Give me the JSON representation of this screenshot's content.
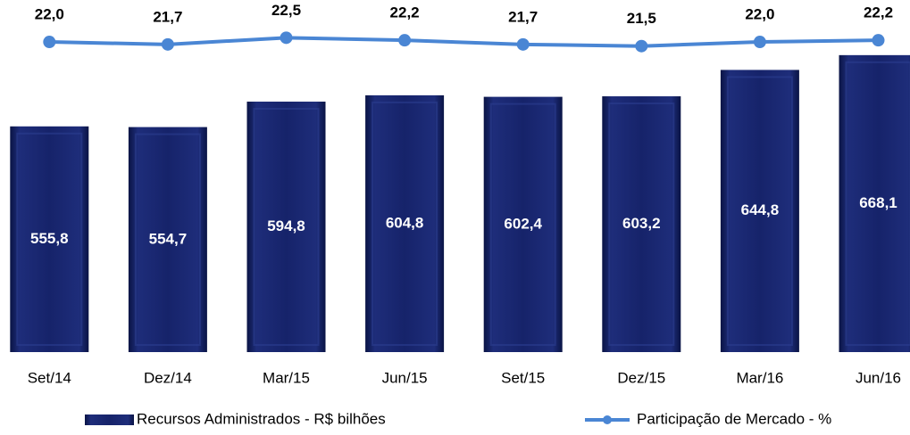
{
  "chart_data": {
    "type": "bar_line",
    "categories": [
      "Set/14",
      "Dez/14",
      "Mar/15",
      "Jun/15",
      "Set/15",
      "Dez/15",
      "Mar/16",
      "Jun/16"
    ],
    "series": [
      {
        "name": "Recursos Administrados - R$ bilhões",
        "type": "bar",
        "color": "#16236a",
        "values": [
          555.8,
          554.7,
          594.8,
          604.8,
          602.4,
          603.2,
          644.8,
          668.1
        ],
        "value_labels": [
          "555,8",
          "554,7",
          "594,8",
          "604,8",
          "602,4",
          "603,2",
          "644,8",
          "668,1"
        ]
      },
      {
        "name": "Participação de Mercado - %",
        "type": "line",
        "axis": "y2",
        "color": "#4a86d4",
        "values": [
          22.0,
          21.7,
          22.5,
          22.2,
          21.7,
          21.5,
          22.0,
          22.2
        ],
        "value_labels": [
          "22,0",
          "21,7",
          "22,5",
          "22,2",
          "21,7",
          "21,5",
          "22,0",
          "22,2"
        ]
      }
    ],
    "ylim": [
      200,
      755
    ],
    "y2lim": [
      -15,
      27
    ],
    "legend": "bottom"
  }
}
